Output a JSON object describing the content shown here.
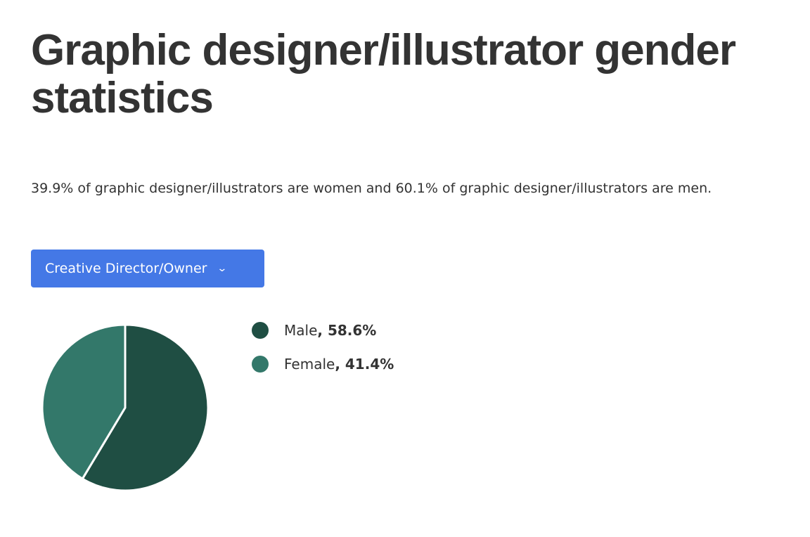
{
  "title": "Graphic designer/illustrator gender statistics",
  "description": "39.9% of graphic designer/illustrators are women and 60.1% of graphic designer/illustrators are men.",
  "dropdown": {
    "selected": "Creative Director/Owner",
    "icon": "chevron-down-icon"
  },
  "colors": {
    "button": "#4478e6",
    "male": "#1f4e43",
    "female": "#33786a"
  },
  "chart_data": {
    "type": "pie",
    "categories": [
      "Male",
      "Female"
    ],
    "values": [
      58.6,
      41.4
    ],
    "labels": [
      "58.6%",
      "41.4%"
    ],
    "legend_position": "right"
  }
}
